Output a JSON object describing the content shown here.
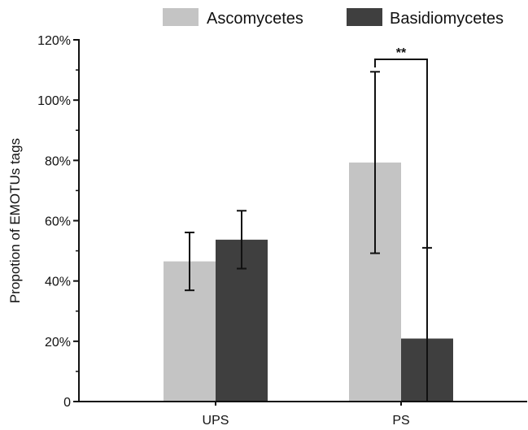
{
  "chart_data": {
    "type": "bar",
    "title": "",
    "xlabel": "",
    "ylabel": "Propotion of EMOTUs tags",
    "categories": [
      "UPS",
      "PS"
    ],
    "series": [
      {
        "name": "Ascomycetes",
        "color": "#c4c4c4",
        "values": [
          46.5,
          79.3
        ],
        "errors": [
          9.6,
          30.1
        ]
      },
      {
        "name": "Basidiomycetes",
        "color": "#3f3f3f",
        "values": [
          53.7,
          20.9
        ],
        "errors": [
          9.6,
          30.1
        ]
      }
    ],
    "ylim": [
      0,
      120
    ],
    "yticks": [
      0,
      20,
      40,
      60,
      80,
      100,
      120
    ],
    "ytick_labels": [
      "0",
      "20%",
      "40%",
      "60%",
      "80%",
      "100%",
      "120%"
    ],
    "grid": false,
    "legend_position": "top",
    "annotations": [
      {
        "text": "**",
        "category": "PS",
        "type": "significance-bracket"
      }
    ]
  }
}
